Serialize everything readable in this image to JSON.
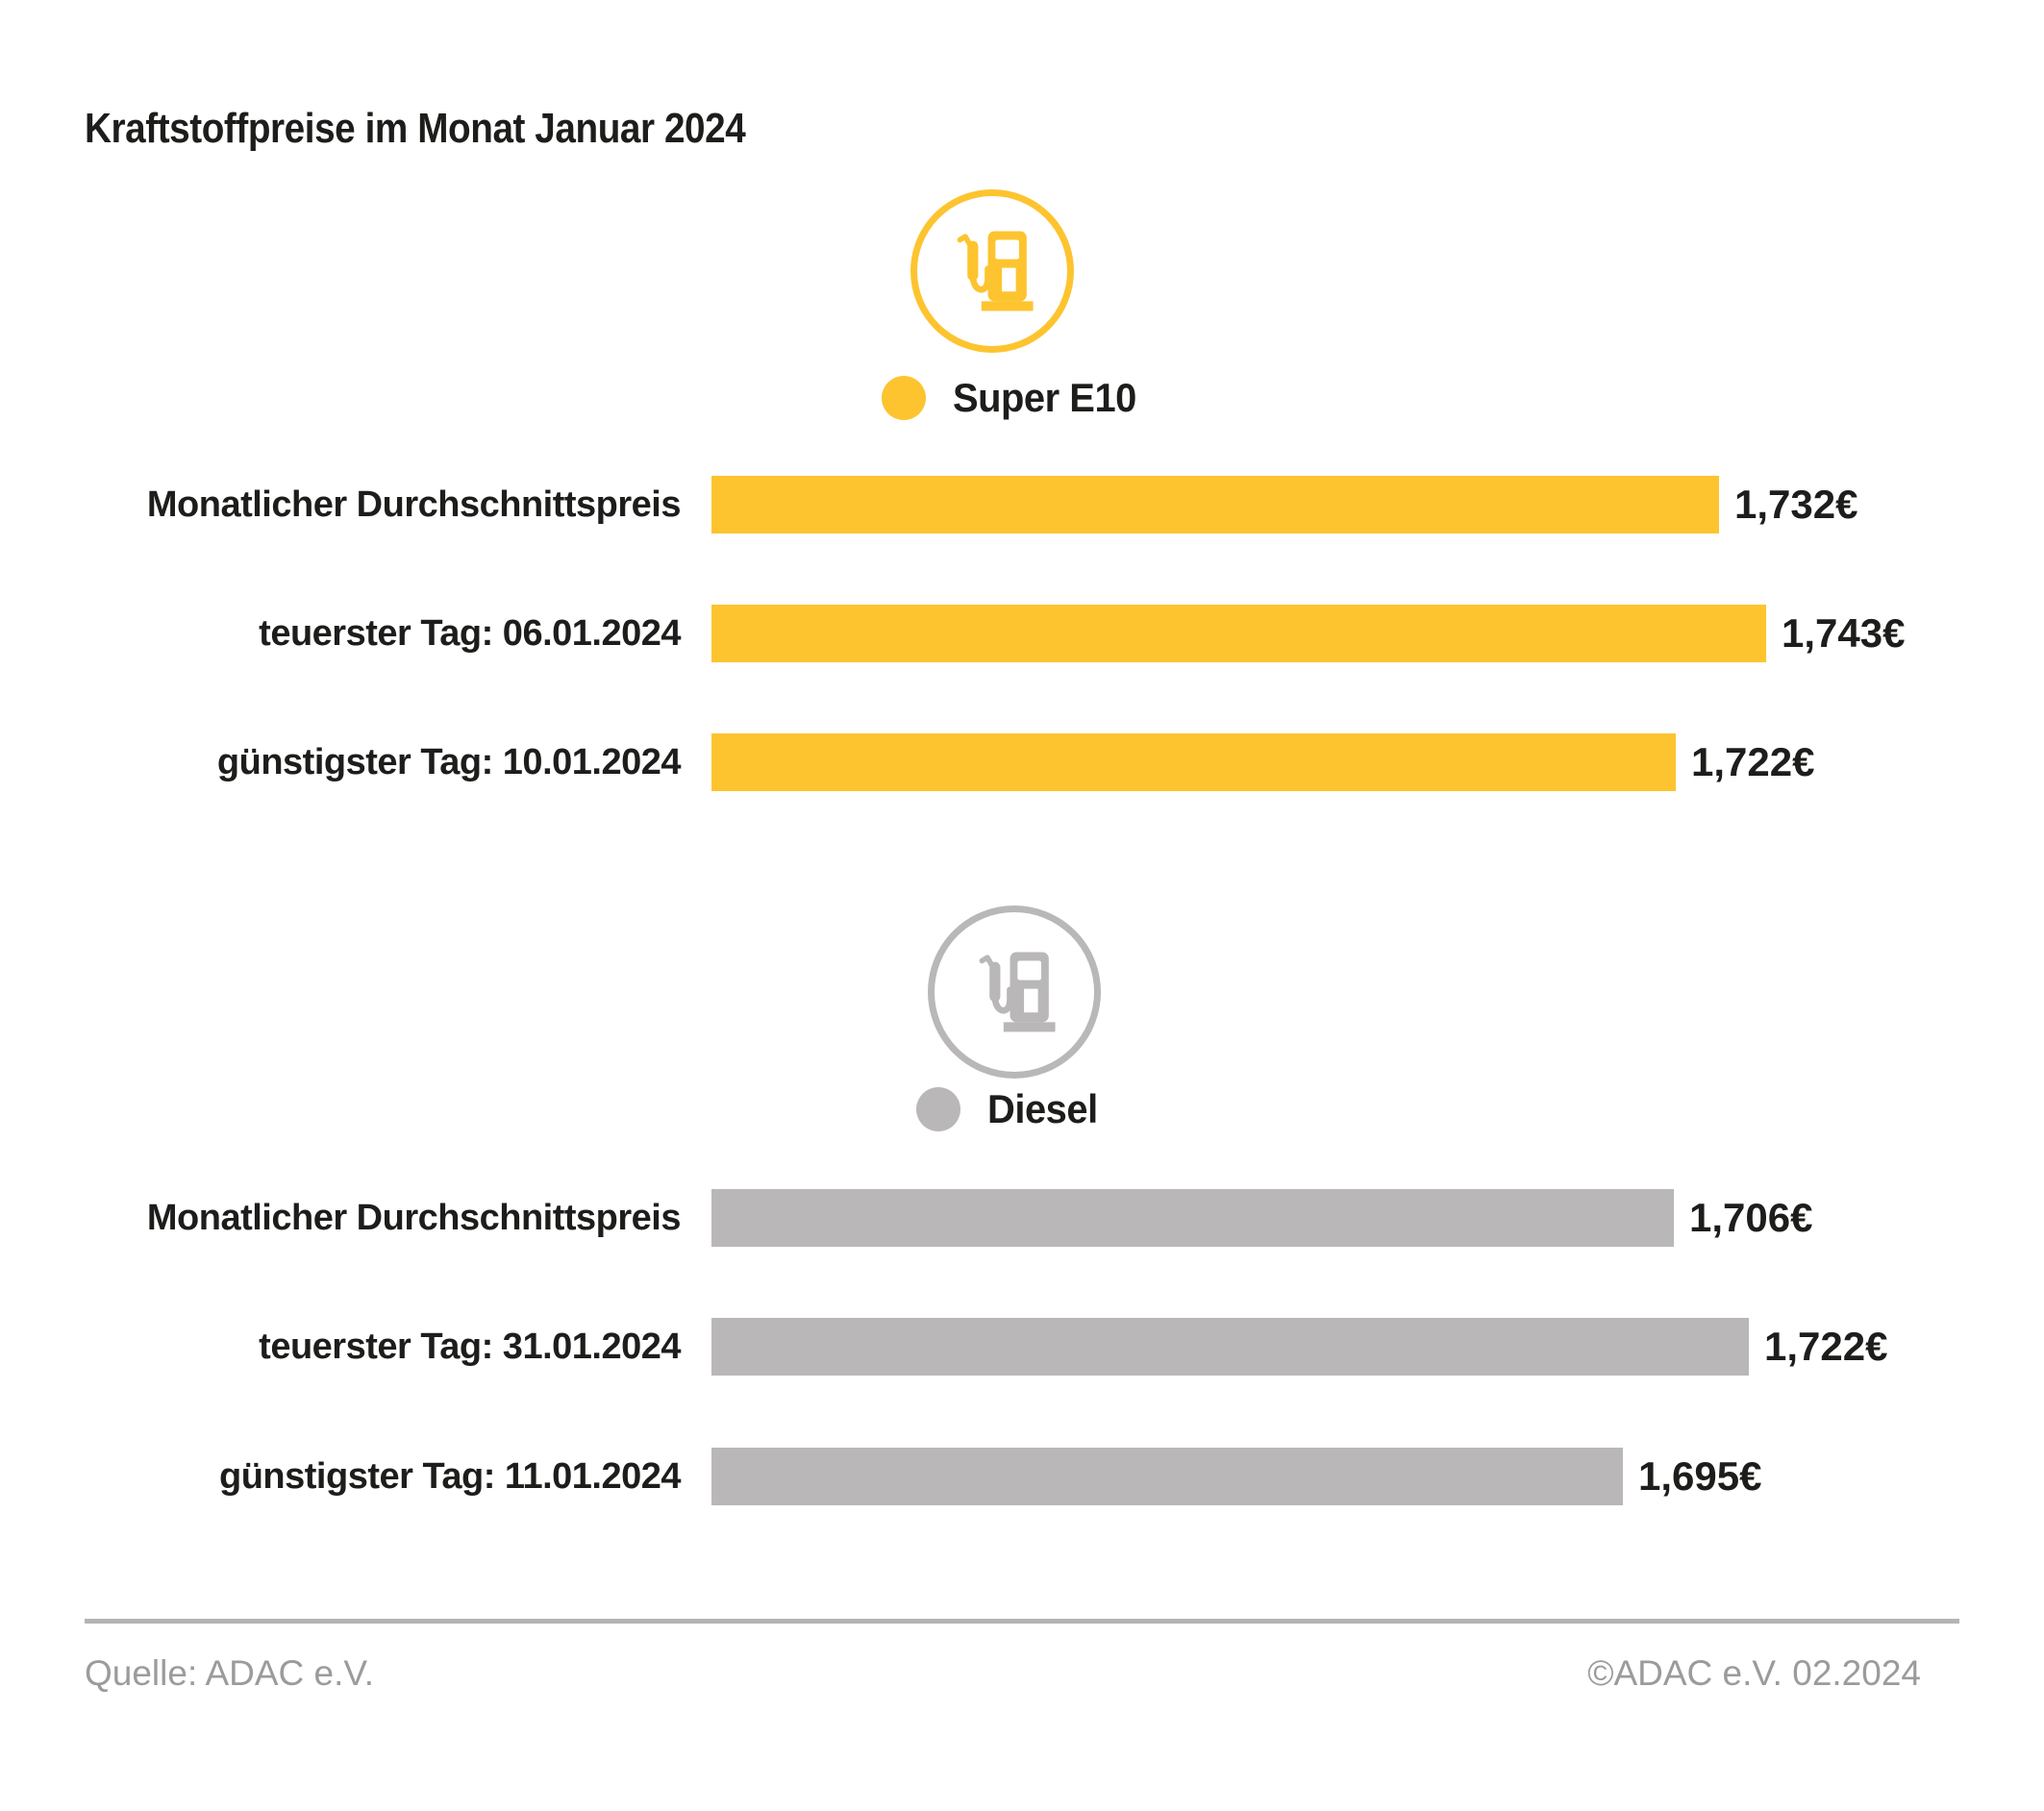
{
  "page": {
    "title": "Kraftstoffpreise im Monat Januar 2024",
    "footer": {
      "source": "Quelle: ADAC e.V.",
      "copyright": "©ADAC e.V. 02.2024"
    }
  },
  "colors": {
    "super_e10_yellow": "#FDC42F",
    "diesel_gray": "#B9B7B7",
    "text_dark": "#1D1D1B",
    "footer_gray": "#9B9B9B",
    "divider_gray": "#B5B4B4"
  },
  "chart_data": [
    {
      "type": "bar",
      "title": "Super E10",
      "icon": "fuel-pump-icon",
      "color": "#FDC42F",
      "orientation": "horizontal",
      "categories": [
        "Monatlicher Durchschnittspreis",
        "teuerster Tag: 06.01.2024",
        "günstigster Tag: 10.01.2024"
      ],
      "values": [
        1.732,
        1.743,
        1.722
      ],
      "labels": [
        "1,732€",
        "1,743€",
        "1,722€"
      ],
      "xlim": [
        1.5,
        1.748
      ],
      "grid": false,
      "legend_position": "above-bars"
    },
    {
      "type": "bar",
      "title": "Diesel",
      "icon": "fuel-pump-icon",
      "color": "#B9B7B7",
      "orientation": "horizontal",
      "categories": [
        "Monatlicher Durchschnittspreis",
        "teuerster Tag: 31.01.2024",
        "günstigster Tag: 11.01.2024"
      ],
      "values": [
        1.706,
        1.722,
        1.695
      ],
      "labels": [
        "1,706€",
        "1,722€",
        "1,695€"
      ],
      "xlim": [
        1.5,
        1.7304
      ],
      "grid": false,
      "legend_position": "above-bars"
    }
  ]
}
